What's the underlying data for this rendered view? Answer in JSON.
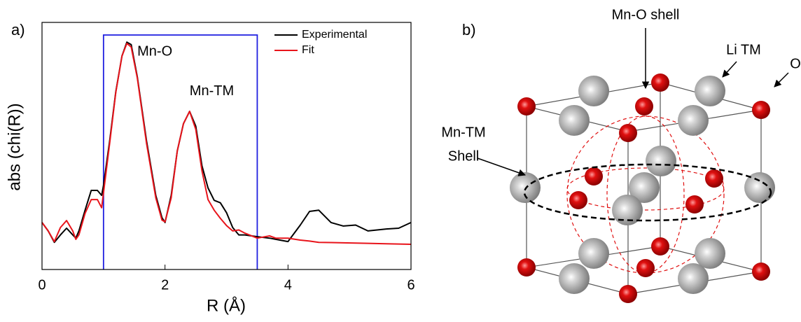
{
  "chart_data": {
    "type": "line",
    "panel_label": "a)",
    "x_label": "R (Å)",
    "y_label": "abs (chi(R))",
    "x": [
      0,
      0.1,
      0.2,
      0.3,
      0.4,
      0.5,
      0.55,
      0.6,
      0.7,
      0.8,
      0.9,
      0.97,
      1.0,
      1.1,
      1.2,
      1.3,
      1.38,
      1.45,
      1.55,
      1.7,
      1.85,
      1.95,
      2.0,
      2.1,
      2.2,
      2.3,
      2.4,
      2.5,
      2.6,
      2.7,
      2.8,
      2.9,
      3.0,
      3.1,
      3.2,
      3.3,
      3.5,
      3.7,
      3.8,
      4.0,
      4.2,
      4.35,
      4.5,
      4.7,
      4.9,
      5.1,
      5.3,
      5.6,
      5.8,
      6.0
    ],
    "series": [
      {
        "name": "Experimental",
        "color": "#000000",
        "values": [
          0.19,
          0.156,
          0.11,
          0.14,
          0.167,
          0.14,
          0.127,
          0.156,
          0.24,
          0.32,
          0.32,
          0.3,
          0.34,
          0.52,
          0.72,
          0.864,
          0.92,
          0.91,
          0.78,
          0.52,
          0.3,
          0.21,
          0.19,
          0.3,
          0.48,
          0.59,
          0.64,
          0.58,
          0.42,
          0.33,
          0.28,
          0.27,
          0.23,
          0.17,
          0.14,
          0.14,
          0.133,
          0.127,
          0.122,
          0.113,
          0.18,
          0.235,
          0.24,
          0.19,
          0.176,
          0.18,
          0.156,
          0.164,
          0.167,
          0.19
        ]
      },
      {
        "name": "Fit",
        "color": "#e8141b",
        "values": [
          0.19,
          0.156,
          0.113,
          0.17,
          0.198,
          0.156,
          0.122,
          0.14,
          0.227,
          0.283,
          0.283,
          0.25,
          0.31,
          0.51,
          0.717,
          0.864,
          0.915,
          0.9,
          0.775,
          0.51,
          0.29,
          0.2,
          0.193,
          0.29,
          0.48,
          0.59,
          0.64,
          0.567,
          0.4,
          0.283,
          0.24,
          0.207,
          0.178,
          0.156,
          0.16,
          0.147,
          0.127,
          0.136,
          0.127,
          0.127,
          0.119,
          0.115,
          0.11,
          0.109,
          0.108,
          0.107,
          0.106,
          0.104,
          0.103,
          0.102
        ]
      }
    ],
    "xlim": [
      0,
      6
    ],
    "xticks": [
      0,
      2,
      4,
      6
    ],
    "ylim": [
      0,
      1
    ],
    "fit_window": [
      1,
      3.5
    ],
    "fit_window_color": "#1f1fe0",
    "annotations": [
      {
        "text": "Mn-O",
        "x": 1.55,
        "y": 0.88
      },
      {
        "text": "Mn-TM",
        "x": 2.4,
        "y": 0.72
      }
    ]
  },
  "diagram": {
    "panel_label": "b)",
    "labels": {
      "mn_o_shell": "Mn-O shell",
      "li_tm": "Li TM",
      "o": "O",
      "mn_tm_shell": [
        "Mn-TM",
        "Shell"
      ]
    }
  }
}
